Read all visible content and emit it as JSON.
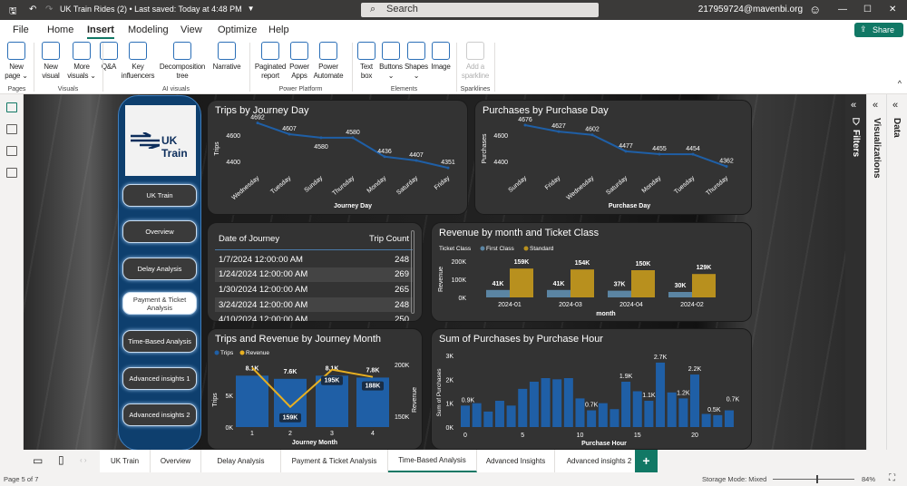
{
  "titlebar": {
    "file_title": "UK Train Rides (2) • Last saved: Today at 4:48 PM",
    "search_placeholder": "Search",
    "user": "217959724@mavenbi.org",
    "minimize": "—",
    "maximize": "☐",
    "close": "✕"
  },
  "menu": {
    "items": [
      "File",
      "Home",
      "Insert",
      "Modeling",
      "View",
      "Optimize",
      "Help"
    ],
    "active": "Insert",
    "share_label": "Share"
  },
  "ribbon": {
    "items": [
      {
        "label": "New\npage ⌄",
        "group": 0
      },
      {
        "label": "New\nvisual",
        "group": 1
      },
      {
        "label": "More\nvisuals ⌄",
        "group": 1
      },
      {
        "label": "Q&A",
        "group": 2
      },
      {
        "label": "Key\ninfluencers",
        "group": 2
      },
      {
        "label": "Decomposition\ntree",
        "group": 2
      },
      {
        "label": "Narrative",
        "group": 2
      },
      {
        "label": "Paginated\nreport",
        "group": 3
      },
      {
        "label": "Power\nApps",
        "group": 3
      },
      {
        "label": "Power\nAutomate",
        "group": 3
      },
      {
        "label": "Text\nbox",
        "group": 4
      },
      {
        "label": "Buttons\n⌄",
        "group": 4
      },
      {
        "label": "Shapes\n⌄",
        "group": 4
      },
      {
        "label": "Image",
        "group": 4
      },
      {
        "label": "Add a\nsparkline",
        "group": 5,
        "disabled": true
      }
    ],
    "groups": [
      "Pages",
      "Visuals",
      "AI visuals",
      "Power Platform",
      "Elements",
      "Sparklines"
    ]
  },
  "nav": {
    "logo_text": "UK Train",
    "buttons": [
      "UK Train",
      "Overview",
      "Delay Analysis",
      "Payment & Ticket Analysis",
      "Time-Based Analysis",
      "Advanced insights 1",
      "Advanced insights 2"
    ],
    "selected": "Payment & Ticket Analysis",
    "accent": "#0e3f6e"
  },
  "table": {
    "headers": [
      "Date of Journey",
      "Trip Count"
    ],
    "rows": [
      [
        "1/7/2024 12:00:00 AM",
        "248"
      ],
      [
        "1/24/2024 12:00:00 AM",
        "269"
      ],
      [
        "1/30/2024 12:00:00 AM",
        "265"
      ],
      [
        "3/24/2024 12:00:00 AM",
        "248"
      ],
      [
        "4/10/2024 12:00:00 AM",
        "250"
      ]
    ]
  },
  "chart_data": [
    {
      "id": "trips-day",
      "type": "line",
      "title": "Trips by Journey Day",
      "xlabel": "Journey Day",
      "ylabel": "Trips",
      "categories": [
        "Wednesday",
        "Tuesday",
        "Sunday",
        "Thursday",
        "Monday",
        "Saturday",
        "Friday"
      ],
      "values": [
        4692,
        4607,
        4580,
        4580,
        4436,
        4407,
        4351
      ],
      "yticks": [
        4400,
        4600
      ],
      "color": "#1f5fa6"
    },
    {
      "id": "purch-day",
      "type": "line",
      "title": "Purchases by Purchase Day",
      "xlabel": "Purchase Day",
      "ylabel": "Purchases",
      "categories": [
        "Sunday",
        "Friday",
        "Wednesday",
        "Saturday",
        "Monday",
        "Tuesday",
        "Thursday"
      ],
      "values": [
        4676,
        4627,
        4602,
        4477,
        4455,
        4454,
        4362
      ],
      "yticks": [
        4400,
        4600
      ],
      "color": "#1f5fa6"
    },
    {
      "id": "rev-month",
      "type": "bar",
      "title": "Revenue by month and Ticket Class",
      "xlabel": "month",
      "ylabel": "Revenue",
      "legend_title": "Ticket Class",
      "categories": [
        "2024-01",
        "2024-03",
        "2024-04",
        "2024-02"
      ],
      "series": [
        {
          "name": "First Class",
          "values": [
            41000,
            41000,
            37000,
            30000
          ],
          "labels": [
            "41K",
            "41K",
            "37K",
            "30K"
          ],
          "color": "#5b85a3"
        },
        {
          "name": "Standard",
          "values": [
            159000,
            154000,
            150000,
            129000
          ],
          "labels": [
            "159K",
            "154K",
            "150K",
            "129K"
          ],
          "color": "#b8901e"
        }
      ],
      "yticks": [
        "0K",
        "100K",
        "200K"
      ],
      "ylim": [
        0,
        200000
      ],
      "legend": "top-left"
    },
    {
      "id": "trips-rev",
      "type": "combo",
      "title": "Trips and Revenue by Journey Month",
      "xlabel": "Journey Month",
      "ylabel": "Trips",
      "y2label": "Revenue",
      "categories": [
        "1",
        "2",
        "3",
        "4"
      ],
      "series": [
        {
          "name": "Trips",
          "type": "bar",
          "values": [
            8100,
            7600,
            8100,
            7800
          ],
          "labels": [
            "8.1K",
            "7.6K",
            "8.1K",
            "7.8K"
          ],
          "color": "#1f5fa6"
        },
        {
          "name": "Revenue",
          "type": "line",
          "values": [
            197000,
            159000,
            195000,
            188000
          ],
          "labels": [
            "",
            "159K",
            "195K",
            "188K"
          ],
          "color": "#e8b021"
        }
      ],
      "yticks": [
        "0K",
        "5K"
      ],
      "y2ticks": [
        "150K",
        "200K"
      ],
      "legend": "top-left"
    },
    {
      "id": "purch-hour",
      "type": "bar",
      "title": "Sum of Purchases by Purchase Hour",
      "xlabel": "Purchase Hour",
      "ylabel": "Sum of Purchases",
      "x": [
        0,
        1,
        2,
        3,
        4,
        5,
        6,
        7,
        8,
        9,
        10,
        11,
        12,
        13,
        14,
        15,
        16,
        17,
        18,
        19,
        20,
        21,
        22,
        23
      ],
      "values": [
        900,
        1000,
        650,
        1100,
        900,
        1600,
        1900,
        2050,
        2000,
        2050,
        1200,
        700,
        1000,
        750,
        1900,
        1500,
        1100,
        2700,
        1450,
        1200,
        2200,
        550,
        500,
        700
      ],
      "labels": {
        "0": "0.9K",
        "11": "0.7K",
        "14": "1.9K",
        "16": "1.1K",
        "17": "2.7K",
        "19": "1.2K",
        "20": "2.2K",
        "22": "0.5K",
        "23": "0.7K"
      },
      "yticks": [
        "0K",
        "1K",
        "2K",
        "3K"
      ],
      "xticks": [
        "0",
        "5",
        "10",
        "15",
        "20"
      ],
      "ylim": [
        0,
        3000
      ],
      "color": "#1f5fa6"
    }
  ],
  "panes": {
    "filters": "Filters",
    "visualizations": "Visualizations",
    "data": "Data"
  },
  "tabs": {
    "items": [
      "UK Train",
      "Overview",
      "Delay Analysis",
      "Payment & Ticket Analysis",
      "Time-Based Analysis",
      "Advanced Insights",
      "Advanced insights 2"
    ],
    "active": "Time-Based Analysis",
    "add": "+"
  },
  "status": {
    "page": "Page 5 of 7",
    "storage": "Storage Mode: Mixed",
    "zoom": "84%"
  }
}
